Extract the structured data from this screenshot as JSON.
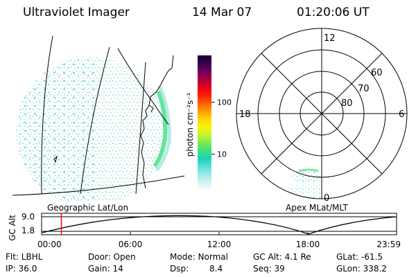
{
  "header": {
    "instrument": "Ultraviolet Imager",
    "date": "14 Mar 07",
    "time": "01:20:06 UT"
  },
  "colorbar": {
    "label": "photon cm⁻²s⁻¹",
    "ticks": [
      {
        "value": 100,
        "text": "100"
      },
      {
        "value": 10,
        "text": "10"
      }
    ],
    "range": [
      2,
      800
    ],
    "colors": [
      "#ffffff",
      "#d8f0f0",
      "#9ee9ea",
      "#53e1dc",
      "#20d0b8",
      "#3fe080",
      "#7fe84c",
      "#c6f430",
      "#f7f50a",
      "#ffd400",
      "#ff9c00",
      "#ff5a00",
      "#ff1c00",
      "#e80020",
      "#a8003c",
      "#6a0060",
      "#3a004a",
      "#16003a"
    ]
  },
  "polar": {
    "clock_labels": {
      "top": "12",
      "right": "6",
      "bottom": "0",
      "left": "18"
    },
    "lat_labels": [
      "60",
      "70",
      "80"
    ]
  },
  "timeline": {
    "y_label": "GC Alt",
    "y_max": "9.0",
    "y_min": "1.8",
    "left_title": "Geographic Lat/Lon",
    "right_title": "Apex MLat/MLT",
    "x_ticks": [
      "00:00",
      "06:00",
      "12:00",
      "18:00",
      "23:59"
    ],
    "marker_time_hours": 1.335,
    "colors": {
      "marker": "#ff0000",
      "curve": "#000000"
    }
  },
  "footer": {
    "filter": "Flt: LBHL",
    "ip": "IP: 36.0",
    "door": "Door: Open",
    "gain": "Gain: 14",
    "mode": "Mode: Normal",
    "dsp_label": "Dsp:",
    "dsp_value": "8.4",
    "gcalt": "GC Alt: 4.1 Re",
    "seq": "Seq: 39",
    "glat": "GLat: -61.5",
    "glon": "GLon: 338.2"
  }
}
